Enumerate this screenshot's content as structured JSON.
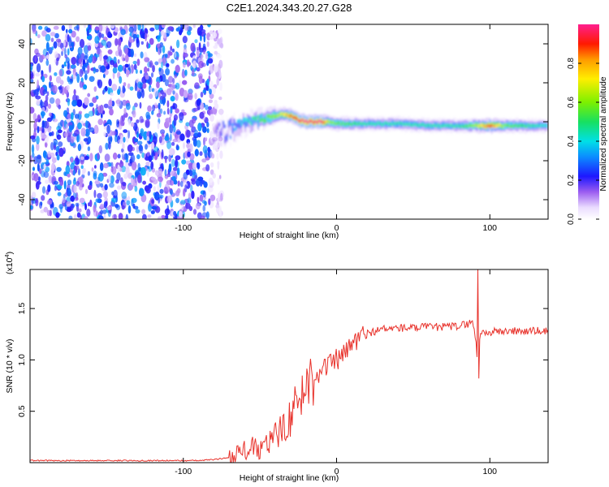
{
  "chart_data": [
    {
      "type": "heatmap",
      "title": "C2E1.2024.343.20.27.G28",
      "xlabel": "Height of straight line (km)",
      "ylabel": "Frequency (Hz)",
      "xlim": [
        -200,
        138
      ],
      "ylim": [
        -50,
        50
      ],
      "x_ticks": [
        -100,
        0,
        100
      ],
      "x_tick_labels": [
        "-100",
        "0",
        "100"
      ],
      "y_ticks": [
        -40,
        -20,
        0,
        20,
        40
      ],
      "y_tick_labels": [
        "-40",
        "-20",
        "0",
        "20",
        "40"
      ],
      "colorbar": {
        "label": "Normalized spectral amplitude",
        "range": [
          0,
          1
        ],
        "ticks": [
          0.0,
          0.2,
          0.4,
          0.6,
          0.8
        ],
        "tick_labels": [
          "0.0",
          "0.2",
          "0.4",
          "0.6",
          "0.8"
        ]
      },
      "noise_region_x": [
        -200,
        -78
      ],
      "noise_amplitude": [
        0.05,
        0.35
      ],
      "signal_ridge": {
        "x": [
          -80,
          -75,
          -70,
          -65,
          -60,
          -55,
          -50,
          -45,
          -40,
          -35,
          -30,
          -25,
          -20,
          -15,
          -10,
          -5,
          0,
          10,
          20,
          40,
          60,
          80,
          90,
          100,
          110,
          120,
          138
        ],
        "frequency_hz": [
          -6,
          -5,
          -4,
          -3,
          -1,
          0,
          1,
          2,
          3,
          4,
          3,
          1,
          0,
          0,
          0,
          0,
          -1,
          -1,
          -1,
          -1,
          -2,
          -2,
          -2,
          -2,
          -2,
          -2,
          -2
        ],
        "amplitude": [
          0.15,
          0.25,
          0.3,
          0.35,
          0.4,
          0.45,
          0.5,
          0.55,
          0.6,
          0.7,
          0.85,
          0.95,
          1.0,
          0.95,
          1.0,
          0.6,
          0.55,
          0.5,
          0.45,
          0.45,
          0.45,
          0.45,
          0.6,
          0.9,
          0.55,
          0.5,
          0.4
        ]
      },
      "grid": false
    },
    {
      "type": "line",
      "xlabel": "Height of straight line (km)",
      "ylabel": "SNR (10 * v/v)",
      "y_multiplier_label": "(x10",
      "y_multiplier_exponent": "4",
      "y_multiplier_close": ")",
      "xlim": [
        -200,
        138
      ],
      "ylim": [
        0,
        1.88
      ],
      "x_ticks": [
        -100,
        0,
        100
      ],
      "x_tick_labels": [
        "-100",
        "0",
        "100"
      ],
      "y_ticks": [
        0.5,
        1.0,
        1.5
      ],
      "y_tick_labels": [
        "0.5",
        "1.0",
        "1.5"
      ],
      "series": [
        {
          "color": "#e8312a",
          "x": [
            -200,
            -180,
            -160,
            -140,
            -120,
            -100,
            -90,
            -80,
            -75,
            -70,
            -65,
            -60,
            -55,
            -50,
            -45,
            -40,
            -35,
            -30,
            -25,
            -20,
            -15,
            -10,
            -5,
            0,
            5,
            10,
            15,
            20,
            25,
            30,
            40,
            50,
            60,
            70,
            80,
            85,
            88,
            90,
            92,
            94,
            96,
            100,
            110,
            120,
            130,
            138
          ],
          "y": [
            0.02,
            0.02,
            0.02,
            0.02,
            0.02,
            0.02,
            0.02,
            0.03,
            0.04,
            0.05,
            0.08,
            0.12,
            0.14,
            0.12,
            0.18,
            0.25,
            0.35,
            0.45,
            0.6,
            0.75,
            0.85,
            0.9,
            0.95,
            1.0,
            1.05,
            1.15,
            1.22,
            1.26,
            1.28,
            1.3,
            1.31,
            1.31,
            1.32,
            1.32,
            1.33,
            1.35,
            1.37,
            1.3,
            1.0,
            1.28,
            1.26,
            1.27,
            1.28,
            1.28,
            1.28,
            1.28
          ],
          "spike": {
            "x": 92,
            "y_max": 1.88,
            "y_min": 0.82
          }
        }
      ],
      "grid": false
    }
  ]
}
